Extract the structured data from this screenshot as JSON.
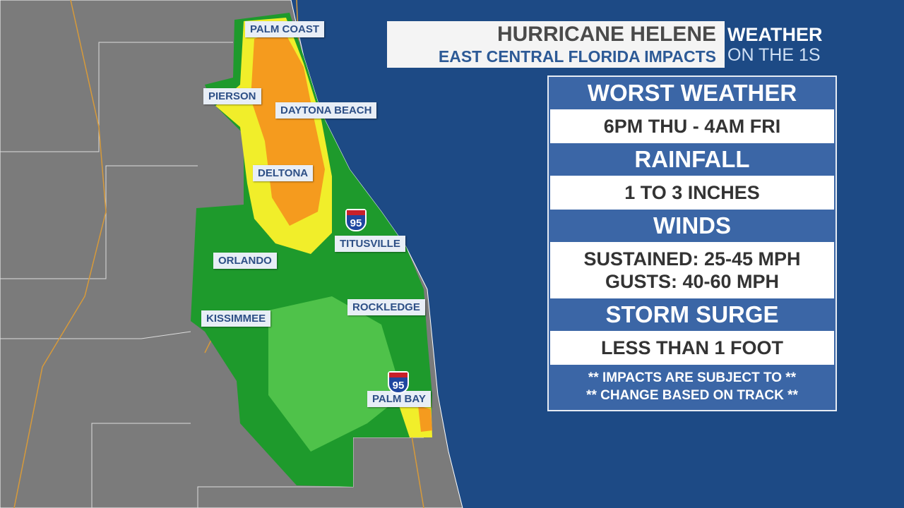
{
  "header": {
    "title": "HURRICANE HELENE",
    "subtitle": "EAST CENTRAL FLORIDA IMPACTS"
  },
  "logo": {
    "line1": "WEATHER",
    "line2": "ON THE 1S"
  },
  "map": {
    "cities": [
      "PALM COAST",
      "PIERSON",
      "DAYTONA BEACH",
      "DELTONA",
      "ORLANDO",
      "TITUSVILLE",
      "KISSIMMEE",
      "ROCKLEDGE",
      "PALM BAY"
    ],
    "shields": [
      "95",
      "95"
    ]
  },
  "panel": {
    "sections": [
      {
        "heading": "WORST WEATHER",
        "lines": [
          "6PM THU - 4AM FRI"
        ]
      },
      {
        "heading": "RAINFALL",
        "lines": [
          "1 TO 3 INCHES"
        ]
      },
      {
        "heading": "WINDS",
        "lines": [
          "SUSTAINED: 25-45 MPH",
          "GUSTS: 40-60 MPH"
        ]
      },
      {
        "heading": "STORM SURGE",
        "lines": [
          "LESS THAN 1 FOOT"
        ]
      }
    ],
    "note": [
      "** IMPACTS ARE SUBJECT TO **",
      "** CHANGE BASED ON TRACK **"
    ]
  }
}
